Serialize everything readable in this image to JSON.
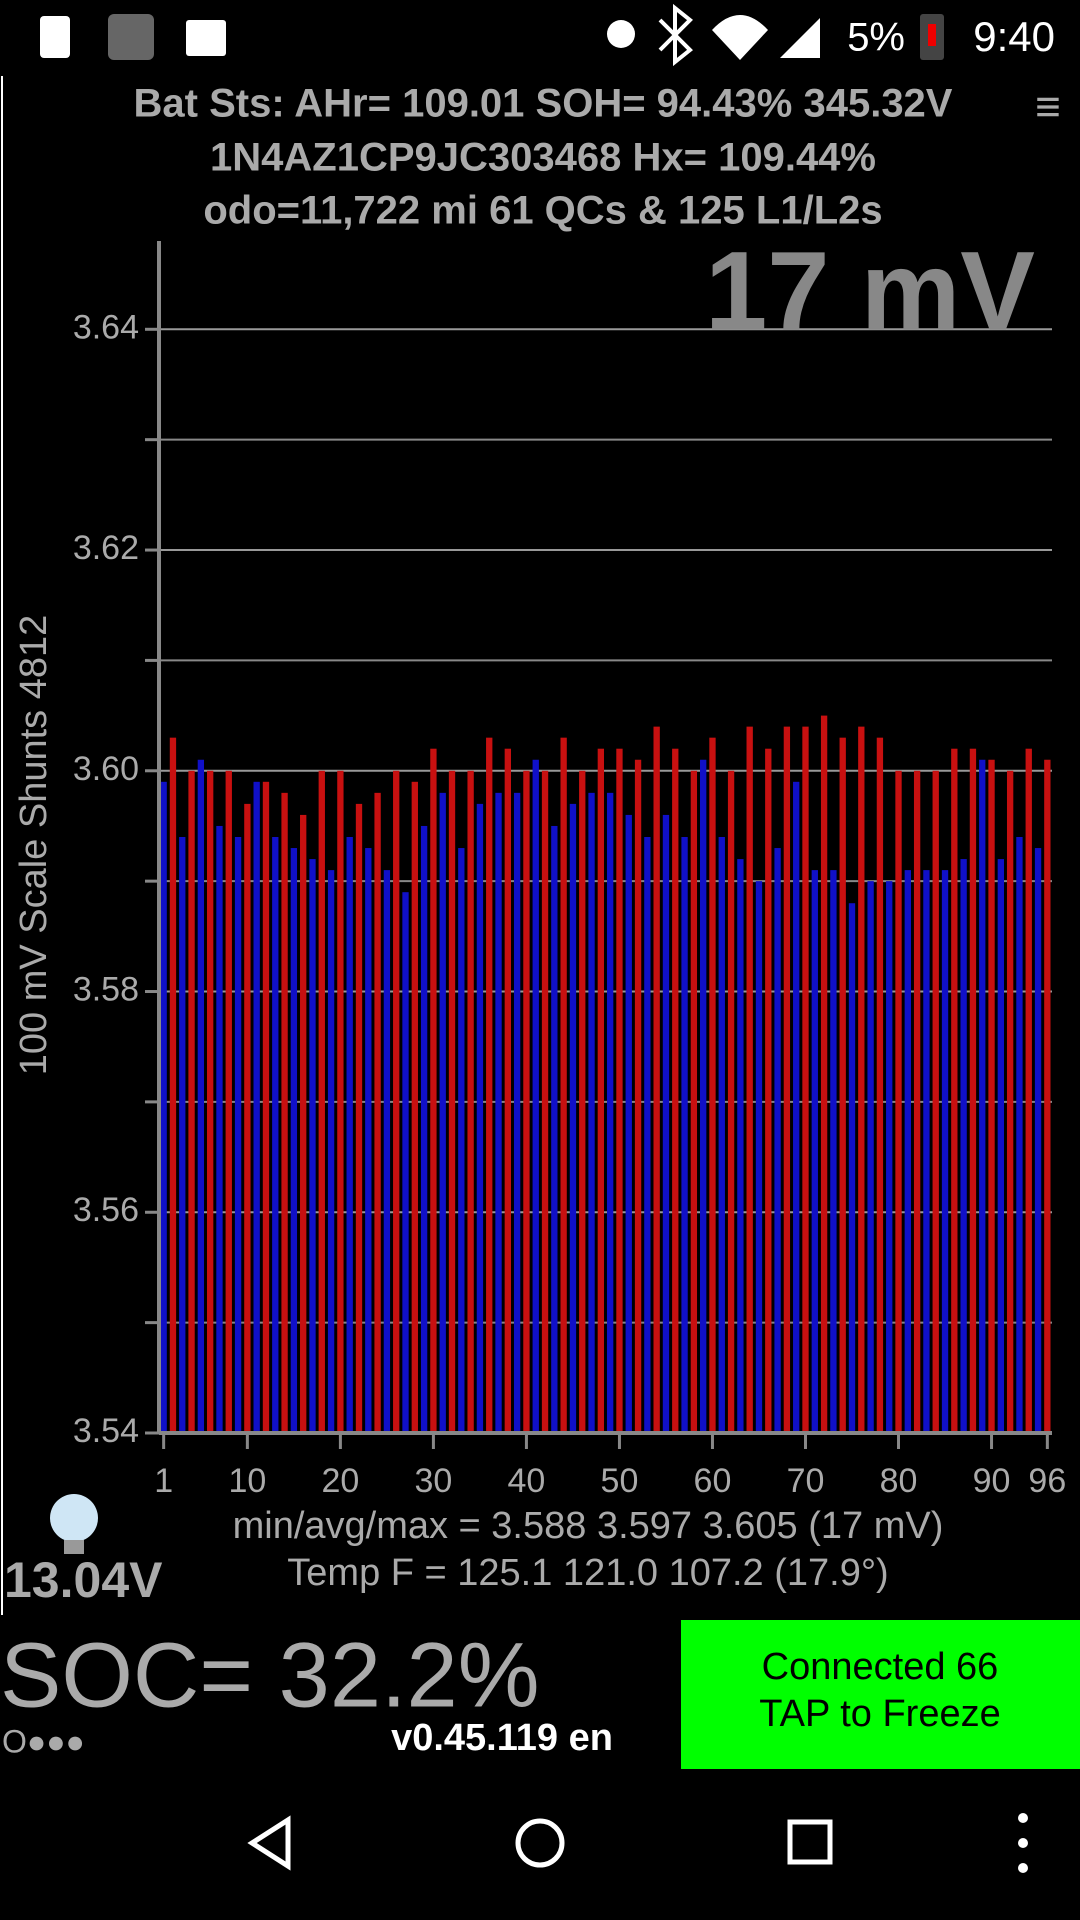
{
  "status_bar": {
    "battery": "5%",
    "time": "9:40"
  },
  "header": {
    "line1": "Bat Sts: AHr= 109.01 SOH= 94.43% 345.32V",
    "line2": "1N4AZ1CP9JC303468   Hx= 109.44%",
    "line3": "odo=11,722 mi 61 QCs & 125 L1/L2s",
    "menu": "≡"
  },
  "chart_data": {
    "type": "bar",
    "annotation": "17 mV",
    "y_label": "100 mV Scale   Shunts 4812",
    "values": [
      3.599,
      3.603,
      3.594,
      3.6,
      3.601,
      3.6,
      3.595,
      3.6,
      3.594,
      3.597,
      3.599,
      3.599,
      3.594,
      3.598,
      3.593,
      3.596,
      3.592,
      3.6,
      3.591,
      3.6,
      3.594,
      3.597,
      3.593,
      3.598,
      3.591,
      3.6,
      3.589,
      3.599,
      3.595,
      3.602,
      3.598,
      3.6,
      3.593,
      3.6,
      3.597,
      3.603,
      3.598,
      3.602,
      3.598,
      3.6,
      3.601,
      3.6,
      3.595,
      3.603,
      3.597,
      3.6,
      3.598,
      3.602,
      3.598,
      3.602,
      3.596,
      3.601,
      3.594,
      3.604,
      3.596,
      3.602,
      3.594,
      3.6,
      3.601,
      3.603,
      3.594,
      3.6,
      3.592,
      3.604,
      3.59,
      3.602,
      3.593,
      3.604,
      3.599,
      3.604,
      3.591,
      3.605,
      3.591,
      3.603,
      3.588,
      3.604,
      3.59,
      3.603,
      3.59,
      3.6,
      3.591,
      3.6,
      3.591,
      3.6,
      3.591,
      3.602,
      3.592,
      3.602,
      3.601,
      3.601,
      3.592,
      3.6,
      3.594,
      3.602,
      3.593,
      3.601
    ],
    "colors": [
      "#1010c8",
      "#c81010"
    ],
    "xlim": [
      0.5,
      96.5
    ],
    "xticks": [
      1,
      10,
      20,
      30,
      40,
      50,
      60,
      70,
      80,
      90,
      96
    ],
    "ylim": [
      3.54,
      3.648
    ],
    "yticks": [
      3.54,
      3.56,
      3.58,
      {
        "value": 3.6,
        "label": "3.60"
      },
      3.62,
      3.64
    ],
    "minor_yticks": [
      3.55,
      3.57,
      3.59,
      3.61,
      3.63
    ],
    "grid": true
  },
  "footer": {
    "stats": "min/avg/max = 3.588 3.597 3.605  (17 mV)",
    "temp": "Temp F = 125.1  121.0  107.2  (17.9°)",
    "voltage": "13.04V",
    "soc": "SOC= 32.2%",
    "dots": "O●●●",
    "version": "v0.45.119 en",
    "button_line1": "Connected 66",
    "button_line2": "TAP to Freeze"
  }
}
